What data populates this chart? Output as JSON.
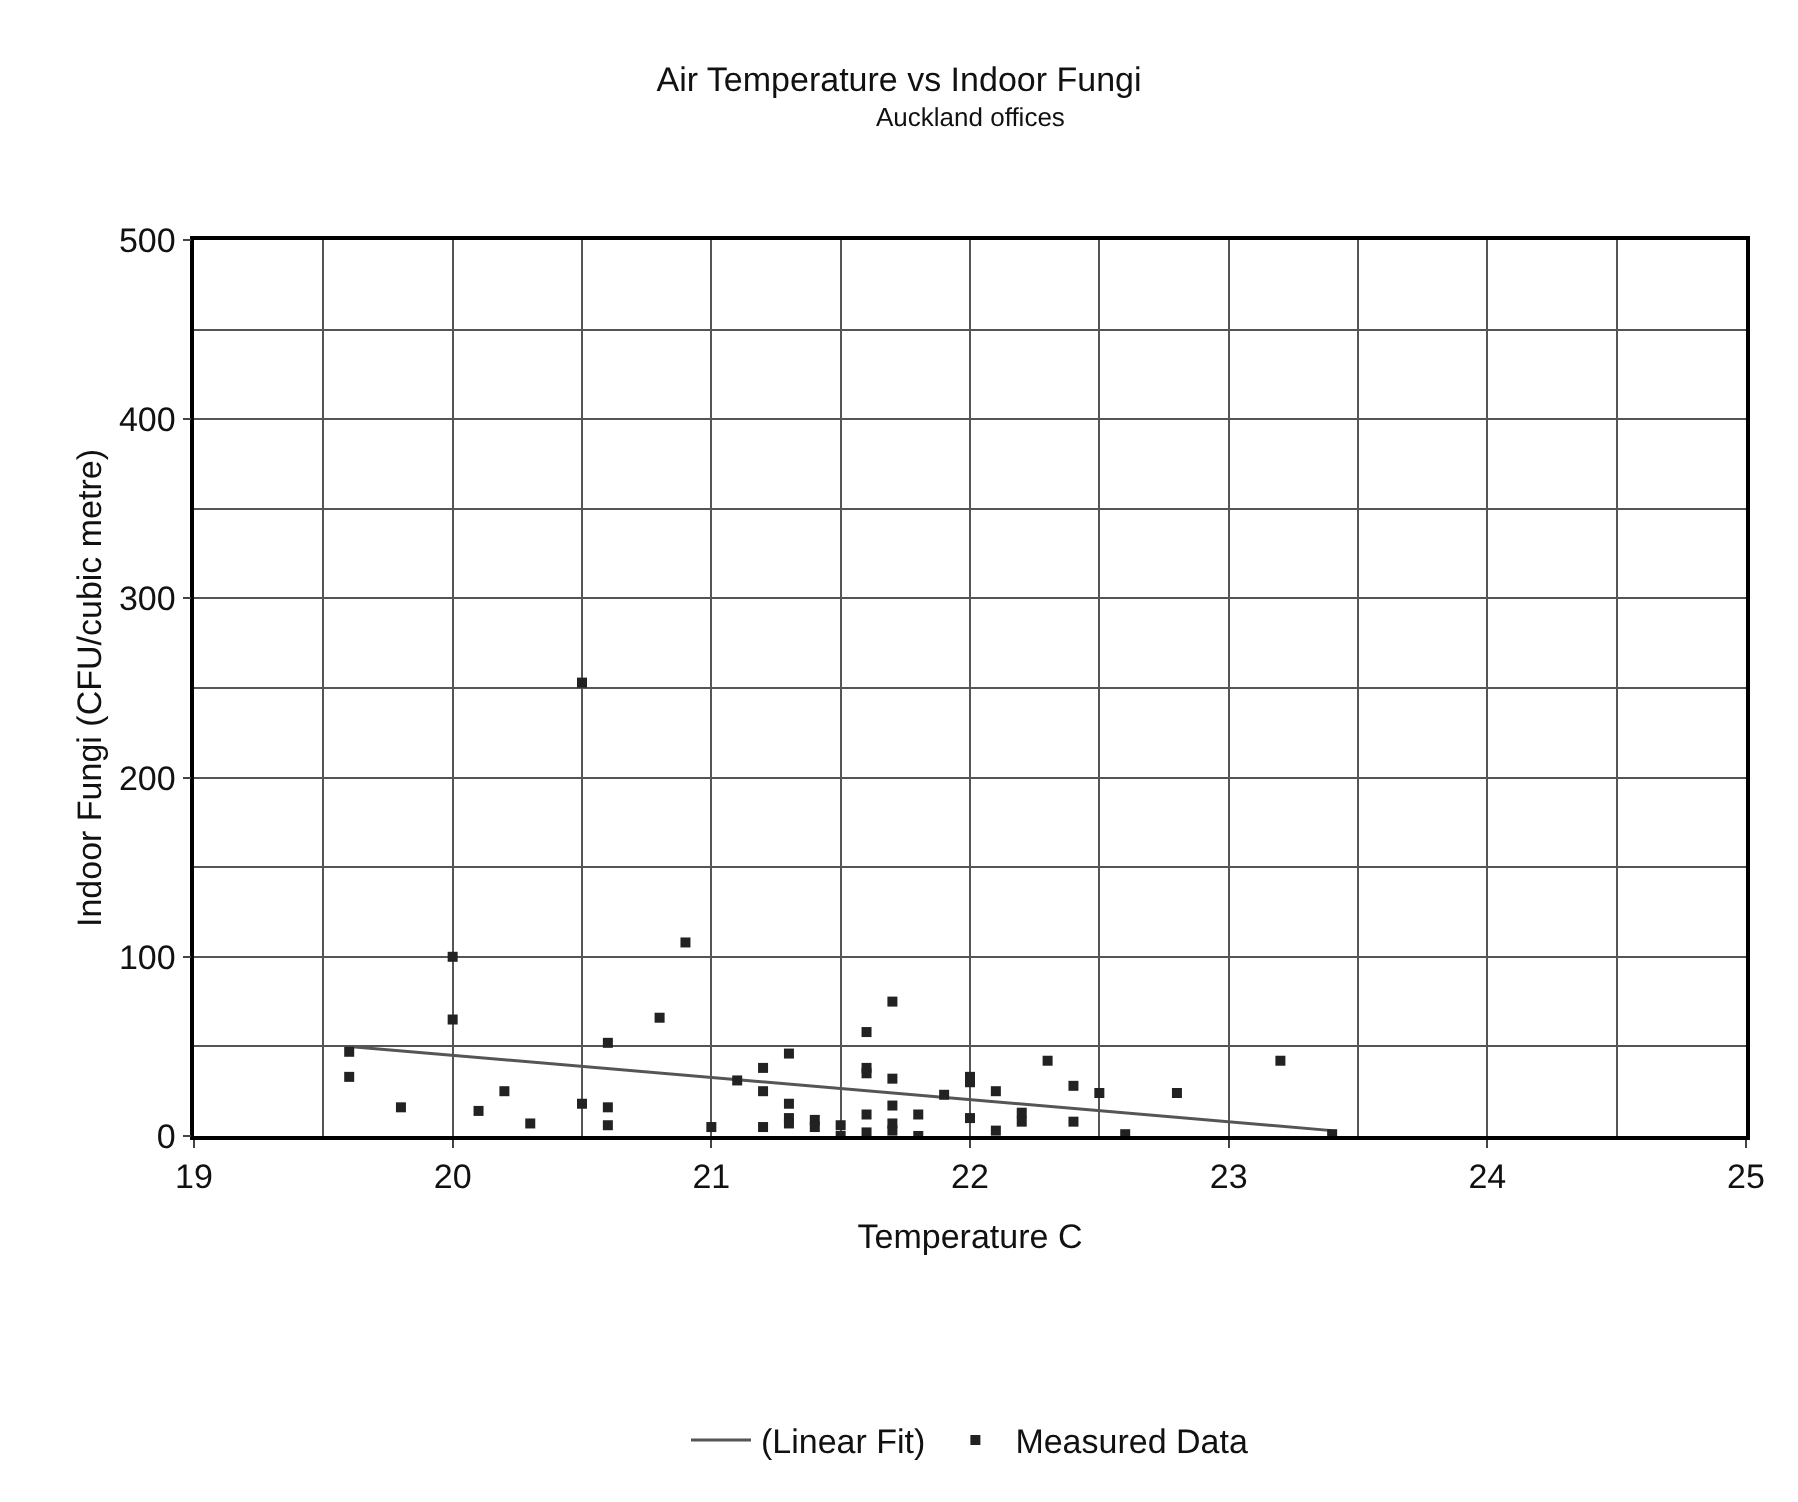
{
  "chart_data": {
    "type": "scatter",
    "title": "Air Temperature vs Indoor Fungi",
    "subtitle": "Auckland offices",
    "xlabel": "Temperature C",
    "ylabel": "Indoor Fungi (CFU/cubic metre)",
    "xlim": [
      19,
      25
    ],
    "xticks": [
      19,
      20,
      21,
      22,
      23,
      24,
      25
    ],
    "ylim": [
      0,
      500
    ],
    "yticks": [
      0,
      100,
      200,
      300,
      400,
      500
    ],
    "grid": true,
    "legend": "bottom",
    "marker": "square",
    "series": [
      {
        "name": "(Linear Fit)",
        "type": "line",
        "color": "#555555",
        "marker": "none",
        "line_style": "solid",
        "x": [
          19.6,
          23.4
        ],
        "values": [
          50,
          3
        ]
      },
      {
        "name": "Measured Data",
        "color": "#222222",
        "x": [
          19.6,
          19.6,
          19.8,
          20.0,
          20.0,
          20.1,
          20.2,
          20.3,
          20.5,
          20.5,
          20.6,
          20.6,
          20.6,
          20.8,
          20.9,
          21.0,
          21.1,
          21.2,
          21.2,
          21.2,
          21.3,
          21.3,
          21.3,
          21.3,
          21.4,
          21.4,
          21.5,
          21.5,
          21.6,
          21.6,
          21.6,
          21.6,
          21.6,
          21.7,
          21.7,
          21.7,
          21.7,
          21.7,
          21.8,
          21.8,
          21.9,
          22.0,
          22.0,
          22.0,
          22.1,
          22.1,
          22.2,
          22.2,
          22.3,
          22.4,
          22.4,
          22.5,
          22.6,
          22.8,
          23.2,
          23.4
        ],
        "values": [
          47,
          33,
          16,
          100,
          65,
          14,
          25,
          7,
          253,
          18,
          52,
          16,
          6,
          66,
          108,
          5,
          31,
          38,
          25,
          5,
          46,
          18,
          10,
          7,
          9,
          5,
          6,
          0,
          58,
          38,
          35,
          12,
          2,
          75,
          32,
          17,
          7,
          3,
          12,
          0,
          23,
          33,
          30,
          10,
          25,
          3,
          13,
          8,
          42,
          28,
          8,
          24,
          1,
          24,
          42,
          1
        ]
      }
    ]
  }
}
